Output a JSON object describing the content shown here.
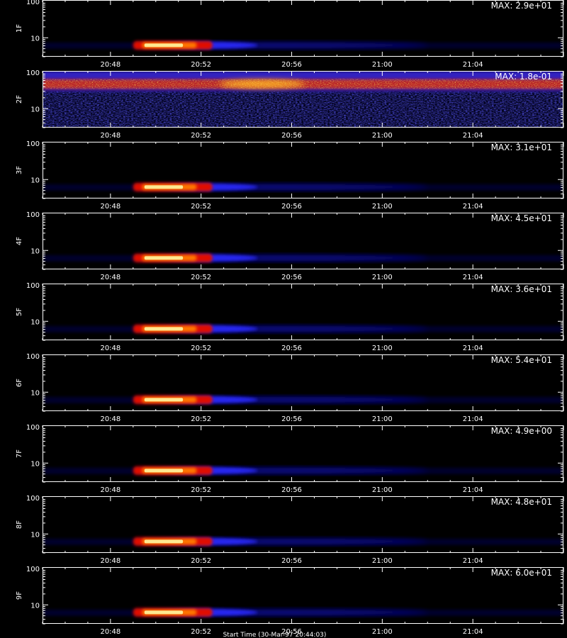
{
  "chart_data": {
    "type": "heatmap",
    "colormap": [
      "#000000",
      "#0a0a90",
      "#2a2aff",
      "#ff1800",
      "#ffc000",
      "#ffffc0"
    ],
    "x_ticks": [
      "20:48",
      "20:52",
      "20:56",
      "21:00",
      "21:04"
    ],
    "x_range_min": [
      45.0,
      68.0
    ],
    "y_scale": "log",
    "y_range": [
      3,
      110
    ],
    "y_ticks": [
      {
        "value": 10,
        "label": "10"
      },
      {
        "value": 100,
        "label": "100"
      }
    ],
    "x_title": "Start Time (30-Mar-97 20:44:03)",
    "panels": [
      {
        "label": "1F",
        "max_text": "MAX: 2.9e+01",
        "kind": "flare"
      },
      {
        "label": "2F",
        "max_text": "MAX: 1.8e-01",
        "kind": "band"
      },
      {
        "label": "3F",
        "max_text": "MAX: 3.1e+01",
        "kind": "flare"
      },
      {
        "label": "4F",
        "max_text": "MAX: 4.5e+01",
        "kind": "flare"
      },
      {
        "label": "5F",
        "max_text": "MAX: 3.6e+01",
        "kind": "flare"
      },
      {
        "label": "6F",
        "max_text": "MAX: 5.4e+01",
        "kind": "flare"
      },
      {
        "label": "7F",
        "max_text": "MAX: 4.9e+00",
        "kind": "flare"
      },
      {
        "label": "8F",
        "max_text": "MAX: 4.8e+01",
        "kind": "flare"
      },
      {
        "label": "9F",
        "max_text": "MAX: 6.0e+01",
        "kind": "flare"
      }
    ]
  }
}
